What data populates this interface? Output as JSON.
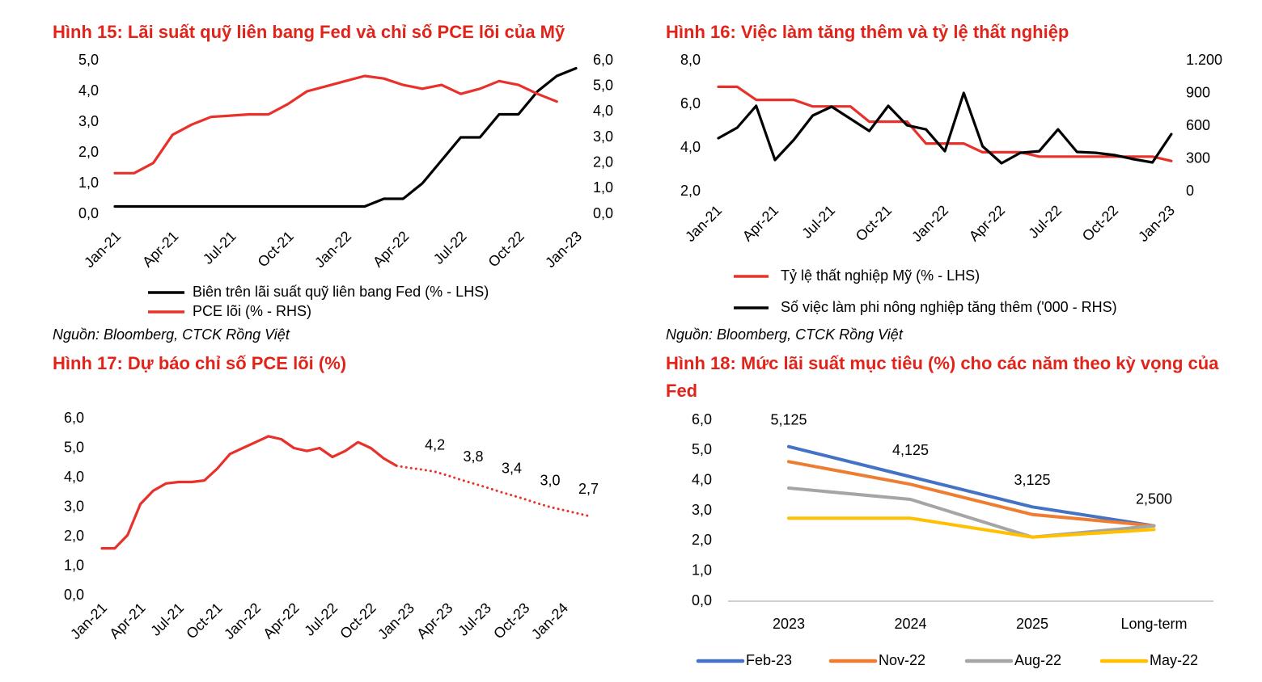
{
  "chart_data": [
    {
      "type": "line",
      "title": "Hình 15: Lãi suất quỹ liên bang Fed và chỉ số PCE lõi của Mỹ",
      "source": "Nguồn: Bloomberg, CTCK Rồng Việt",
      "categories": [
        "Jan-21",
        null,
        null,
        "Apr-21",
        null,
        null,
        "Jul-21",
        null,
        null,
        "Oct-21",
        null,
        null,
        "Jan-22",
        null,
        null,
        "Apr-22",
        null,
        null,
        "Jul-22",
        null,
        null,
        "Oct-22",
        null,
        null,
        "Jan-23"
      ],
      "series": [
        {
          "name": "Biên trên lãi suất quỹ liên bang Fed (% - LHS)",
          "color": "#000000",
          "values": [
            0.25,
            0.25,
            0.25,
            0.25,
            0.25,
            0.25,
            0.25,
            0.25,
            0.25,
            0.25,
            0.25,
            0.25,
            0.25,
            0.25,
            0.5,
            0.5,
            1.0,
            1.75,
            2.5,
            2.5,
            3.25,
            3.25,
            4.0,
            4.5,
            4.75
          ]
        },
        {
          "name": "PCE lõi (% - RHS)",
          "color": "#e8312a",
          "axis": "y2",
          "values": [
            1.6,
            1.6,
            2.0,
            3.1,
            3.5,
            3.8,
            3.85,
            3.9,
            3.9,
            4.3,
            4.8,
            5.0,
            5.2,
            5.4,
            5.3,
            5.05,
            4.9,
            5.05,
            4.7,
            4.9,
            5.2,
            5.05,
            4.7,
            4.4,
            null
          ]
        }
      ],
      "ylim": [
        0,
        5
      ],
      "yticks": [
        {
          "value": 0,
          "label": "0,0"
        },
        {
          "value": 1,
          "label": "1,0"
        },
        {
          "value": 2,
          "label": "2,0"
        },
        {
          "value": 3,
          "label": "3,0"
        },
        {
          "value": 4,
          "label": "4,0"
        },
        {
          "value": 5,
          "label": "5,0"
        }
      ],
      "y2lim": [
        0,
        6
      ],
      "y2ticks": [
        {
          "value": 0,
          "label": "0,0"
        },
        {
          "value": 1,
          "label": "1,0"
        },
        {
          "value": 2,
          "label": "2,0"
        },
        {
          "value": 3,
          "label": "3,0"
        },
        {
          "value": 4,
          "label": "4,0"
        },
        {
          "value": 5,
          "label": "5,0"
        },
        {
          "value": 6,
          "label": "6,0"
        }
      ],
      "grid": false
    },
    {
      "type": "line",
      "title": "Hình 16: Việc làm tăng thêm và tỷ lệ thất nghiệp",
      "source": "Nguồn: Bloomberg, CTCK Rồng Việt",
      "categories": [
        "Jan-21",
        null,
        null,
        "Apr-21",
        null,
        null,
        "Jul-21",
        null,
        null,
        "Oct-21",
        null,
        null,
        "Jan-22",
        null,
        null,
        "Apr-22",
        null,
        null,
        "Jul-22",
        null,
        null,
        "Oct-22",
        null,
        null,
        "Jan-23"
      ],
      "series": [
        {
          "name": "Tỷ lệ thất nghiệp Mỹ (% - LHS)",
          "color": "#e8312a",
          "values": [
            6.8,
            6.8,
            6.2,
            6.2,
            6.2,
            5.9,
            5.9,
            5.9,
            5.2,
            5.2,
            5.2,
            4.2,
            4.2,
            4.2,
            3.8,
            3.8,
            3.8,
            3.6,
            3.6,
            3.6,
            3.6,
            3.6,
            3.6,
            3.6,
            3.4
          ]
        },
        {
          "name": "Số việc làm phi nông nghiệp tăng thêm ('000 - RHS)",
          "color": "#000000",
          "axis": "y2",
          "values": [
            489,
            585,
            785,
            289,
            474,
            696,
            778,
            667,
            555,
            785,
            607,
            570,
            370,
            904,
            415,
            259,
            355,
            370,
            570,
            363,
            355,
            333,
            296,
            267,
            526
          ]
        }
      ],
      "ylim": [
        2,
        8
      ],
      "yticks": [
        {
          "value": 2,
          "label": "2,0"
        },
        {
          "value": 4,
          "label": "4,0"
        },
        {
          "value": 6,
          "label": "6,0"
        },
        {
          "value": 8,
          "label": "8,0"
        }
      ],
      "y2lim": [
        0,
        1200
      ],
      "y2ticks": [
        0,
        300,
        600,
        900,
        {
          "value": 1200,
          "label": "1.200"
        }
      ],
      "grid": false
    },
    {
      "type": "line",
      "title": "Hình 17: Dự báo chỉ số PCE lõi (%)",
      "categories": [
        "Jan-21",
        null,
        null,
        "Apr-21",
        null,
        null,
        "Jul-21",
        null,
        null,
        "Oct-21",
        null,
        null,
        "Jan-22",
        null,
        null,
        "Apr-22",
        null,
        null,
        "Jul-22",
        null,
        null,
        "Oct-22",
        null,
        null,
        "Jan-23",
        null,
        null,
        "Apr-23",
        null,
        null,
        "Jul-23",
        null,
        null,
        "Oct-23",
        null,
        null,
        "Jan-24",
        null,
        null
      ],
      "series": [
        {
          "color": "#e8312a",
          "values": [
            1.6,
            1.6,
            2.05,
            3.1,
            3.55,
            3.8,
            3.85,
            3.85,
            3.9,
            4.3,
            4.8,
            5.0,
            5.2,
            5.4,
            5.3,
            5.0,
            4.9,
            5.0,
            4.7,
            4.9,
            5.2,
            5.0,
            4.65,
            4.4,
            null,
            null,
            null,
            null,
            null,
            null,
            null,
            null,
            null,
            null,
            null,
            null,
            null,
            null,
            null
          ]
        },
        {
          "color": "#e8312a",
          "dashed": true,
          "values": [
            null,
            null,
            null,
            null,
            null,
            null,
            null,
            null,
            null,
            null,
            null,
            null,
            null,
            null,
            null,
            null,
            null,
            null,
            null,
            null,
            null,
            null,
            null,
            4.4,
            4.33,
            4.27,
            4.2,
            4.07,
            3.93,
            3.8,
            3.67,
            3.53,
            3.4,
            3.27,
            3.13,
            3.0,
            2.9,
            2.8,
            2.7
          ],
          "value_labels": [
            null,
            null,
            null,
            null,
            null,
            null,
            null,
            null,
            null,
            null,
            null,
            null,
            null,
            null,
            null,
            null,
            null,
            null,
            null,
            null,
            null,
            null,
            null,
            null,
            null,
            null,
            "4,2",
            null,
            null,
            "3,8",
            null,
            null,
            "3,4",
            null,
            null,
            "3,0",
            null,
            null,
            "2,7"
          ]
        }
      ],
      "ylim": [
        0,
        6
      ],
      "yticks": [
        {
          "value": 0,
          "label": "0,0"
        },
        {
          "value": 1,
          "label": "1,0"
        },
        {
          "value": 2,
          "label": "2,0"
        },
        {
          "value": 3,
          "label": "3,0"
        },
        {
          "value": 4,
          "label": "4,0"
        },
        {
          "value": 5,
          "label": "5,0"
        },
        {
          "value": 6,
          "label": "6,0"
        }
      ],
      "grid": false
    },
    {
      "type": "line",
      "title": "Hình 18: Mức lãi suất mục tiêu (%) cho các năm theo kỳ vọng của Fed",
      "categories": [
        "2023",
        "2024",
        "2025",
        "Long-term"
      ],
      "series": [
        {
          "name": "Feb-23",
          "color": "#4472c4",
          "values": [
            5.125,
            4.125,
            3.125,
            2.5
          ],
          "value_labels": [
            "5,125",
            "4,125",
            "3,125",
            "2,500"
          ]
        },
        {
          "name": "Nov-22",
          "color": "#ed7d31",
          "values": [
            4.625,
            3.875,
            2.875,
            2.5
          ]
        },
        {
          "name": "Aug-22",
          "color": "#a5a5a5",
          "values": [
            3.75,
            3.375,
            2.125,
            2.5
          ]
        },
        {
          "name": "May-22",
          "color": "#ffc000",
          "values": [
            2.75,
            2.75,
            2.125,
            2.375
          ]
        }
      ],
      "ylim": [
        0,
        6
      ],
      "yticks": [
        {
          "value": 0,
          "label": "0,0"
        },
        {
          "value": 1,
          "label": "1,0"
        },
        {
          "value": 2,
          "label": "2,0"
        },
        {
          "value": 3,
          "label": "3,0"
        },
        {
          "value": 4,
          "label": "4,0"
        },
        {
          "value": 5,
          "label": "5,0"
        },
        {
          "value": 6,
          "label": "6,0"
        }
      ],
      "grid": false
    }
  ]
}
